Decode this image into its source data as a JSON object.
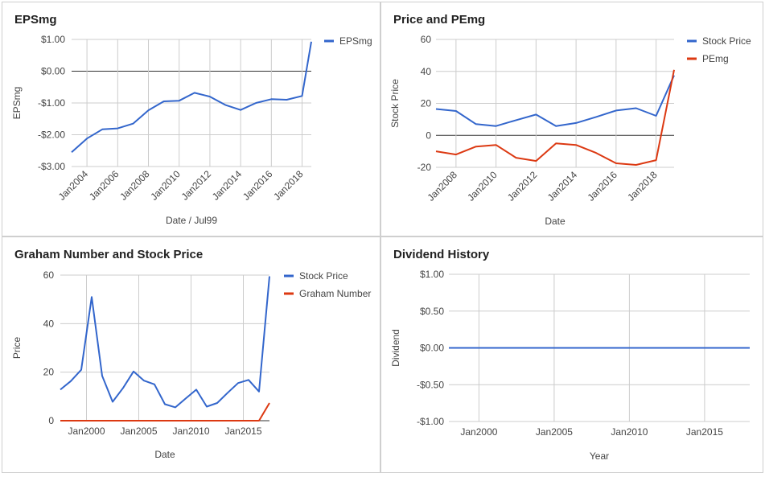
{
  "panels": [
    {
      "title": "EPSmg"
    },
    {
      "title": "Price and PEmg"
    },
    {
      "title": "Graham Number and Stock Price"
    },
    {
      "title": "Dividend History"
    }
  ],
  "colors": {
    "blue": "#3366cc",
    "red": "#dc3912",
    "grid": "#cccccc",
    "zero": "#333333",
    "text": "#444444"
  },
  "chart_data": [
    {
      "type": "line",
      "title": "EPSmg",
      "xlabel": "Date / Jul99",
      "ylabel": "EPSmg",
      "x": [
        2003,
        2004,
        2005,
        2006,
        2007,
        2008,
        2009,
        2010,
        2011,
        2012,
        2013,
        2014,
        2015,
        2016,
        2017,
        2018,
        2018.6
      ],
      "series": [
        {
          "name": "EPSmg",
          "color": "#3366cc",
          "values": [
            -2.55,
            -2.12,
            -1.83,
            -1.8,
            -1.65,
            -1.23,
            -0.95,
            -0.93,
            -0.68,
            -0.8,
            -1.06,
            -1.22,
            -1.0,
            -0.88,
            -0.9,
            -0.78,
            0.93
          ]
        }
      ],
      "xlim": [
        2003,
        2018.6
      ],
      "ylim": [
        -3,
        1
      ],
      "yticks": [
        1,
        0,
        -1,
        -2,
        -3
      ],
      "ytick_labels": [
        "$1.00",
        "$0.00",
        "-$1.00",
        "-$2.00",
        "-$3.00"
      ],
      "xticks": [
        2004,
        2006,
        2008,
        2010,
        2012,
        2014,
        2016,
        2018
      ],
      "xtick_labels": [
        "Jan2004",
        "Jan2006",
        "Jan2008",
        "Jan2010",
        "Jan2012",
        "Jan2014",
        "Jan2016",
        "Jan2018"
      ],
      "legend": "right",
      "grid": true
    },
    {
      "type": "line",
      "title": "Price and PEmg",
      "xlabel": "Date",
      "ylabel": "Stock Price",
      "x": [
        2007,
        2008,
        2009,
        2010,
        2011,
        2012,
        2013,
        2014,
        2015,
        2016,
        2017,
        2018,
        2018.9
      ],
      "series": [
        {
          "name": "Stock Price",
          "color": "#3366cc",
          "values": [
            16.5,
            15.2,
            7.0,
            5.8,
            9.5,
            13.0,
            5.8,
            7.7,
            11.5,
            15.5,
            17.0,
            12.2,
            37.5
          ]
        },
        {
          "name": "PEmg",
          "color": "#dc3912",
          "values": [
            -10.0,
            -12.0,
            -7.0,
            -6.0,
            -14.0,
            -16.0,
            -5.0,
            -6.0,
            -11.0,
            -17.5,
            -18.5,
            -15.5,
            41.0
          ]
        }
      ],
      "xlim": [
        2007,
        2018.9
      ],
      "ylim": [
        -20,
        60
      ],
      "yticks": [
        60,
        40,
        20,
        0,
        -20
      ],
      "ytick_labels": [
        "60",
        "40",
        "20",
        "0",
        "-20"
      ],
      "xticks": [
        2008,
        2010,
        2012,
        2014,
        2016,
        2018
      ],
      "xtick_labels": [
        "Jan2008",
        "Jan2010",
        "Jan2012",
        "Jan2014",
        "Jan2016",
        "Jan2018"
      ],
      "legend": "right",
      "grid": true
    },
    {
      "type": "line",
      "title": "Graham Number and Stock Price",
      "xlabel": "Date",
      "ylabel": "Price",
      "x": [
        1997.5,
        1998.5,
        1999.5,
        2000.5,
        2001.5,
        2002.5,
        2003.5,
        2004.5,
        2005.5,
        2006.5,
        2007.5,
        2008.5,
        2009.5,
        2010.5,
        2011.5,
        2012.5,
        2013.5,
        2014.5,
        2015.5,
        2016.5,
        2017.5
      ],
      "series": [
        {
          "name": "Stock Price",
          "color": "#3366cc",
          "values": [
            12.8,
            16.3,
            21.0,
            51.0,
            18.5,
            7.8,
            13.5,
            20.3,
            16.5,
            15.0,
            6.8,
            5.5,
            9.2,
            12.8,
            5.8,
            7.3,
            11.5,
            15.5,
            16.8,
            12.0,
            59.5
          ]
        },
        {
          "name": "Graham Number",
          "color": "#dc3912",
          "values": [
            0,
            0,
            0,
            0,
            0,
            0,
            0,
            0,
            0,
            0,
            0,
            0,
            0,
            0,
            0,
            0,
            0,
            0,
            0,
            0,
            7.3
          ]
        }
      ],
      "xlim": [
        1997.5,
        2017.5
      ],
      "ylim": [
        0,
        60
      ],
      "yticks": [
        60,
        40,
        20,
        0
      ],
      "ytick_labels": [
        "60",
        "40",
        "20",
        "0"
      ],
      "xticks": [
        2000,
        2005,
        2010,
        2015
      ],
      "xtick_labels": [
        "Jan2000",
        "Jan2005",
        "Jan2010",
        "Jan2015"
      ],
      "legend": "right",
      "grid": true
    },
    {
      "type": "line",
      "title": "Dividend History",
      "xlabel": "Year",
      "ylabel": "Dividend",
      "x": [
        1998,
        2018
      ],
      "series": [
        {
          "name": "",
          "color": "#3366cc",
          "values": [
            0,
            0
          ]
        }
      ],
      "xlim": [
        1998,
        2018
      ],
      "ylim": [
        -1,
        1
      ],
      "yticks": [
        1,
        0.5,
        0,
        -0.5,
        -1
      ],
      "ytick_labels": [
        "$1.00",
        "$0.50",
        "$0.00",
        "-$0.50",
        "-$1.00"
      ],
      "xticks": [
        2000,
        2005,
        2010,
        2015
      ],
      "xtick_labels": [
        "Jan2000",
        "Jan2005",
        "Jan2010",
        "Jan2015"
      ],
      "legend": "none",
      "grid": true
    }
  ]
}
